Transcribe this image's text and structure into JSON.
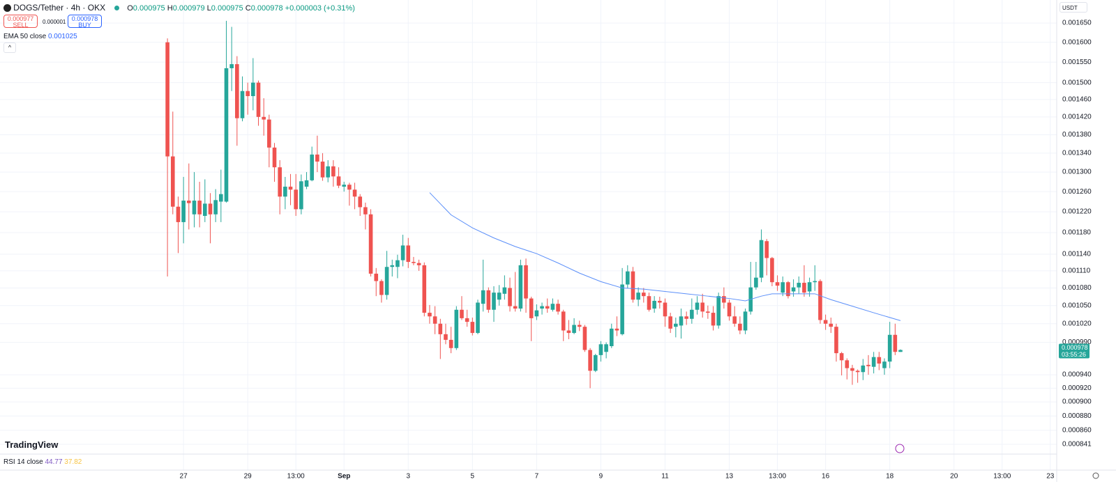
{
  "ui": {
    "symbol": "DOGS/Tether · 4h · OKX",
    "o": "O",
    "h": "H",
    "l": "L",
    "c": "C",
    "change": "+0.000003 (+0.31%)",
    "sell_price": "0.000977",
    "sell": "SELL",
    "spread": "0.000001",
    "buy_price": "0.000978",
    "buy": "BUY",
    "brand": "TradingView",
    "rsi_label": "RSI 14 close",
    "rsi_value": "44.77",
    "rsi_ma": "37.82",
    "countdown": "03:55:26",
    "currency": "USDT"
  },
  "chart_data": {
    "type": "candlestick",
    "log_scale": true,
    "grid": true,
    "up_color": "#26a69a",
    "down_color": "#ef5350",
    "xlim": [
      -31.3,
      166.2
    ],
    "xticks": [
      {
        "value": 3,
        "label": "27"
      },
      {
        "value": 15,
        "label": "29"
      },
      {
        "value": 24,
        "label": "13:00"
      },
      {
        "value": 33,
        "label": "Sep"
      },
      {
        "value": 45,
        "label": "3"
      },
      {
        "value": 57,
        "label": "5"
      },
      {
        "value": 69,
        "label": "7"
      },
      {
        "value": 81,
        "label": "9"
      },
      {
        "value": 93,
        "label": "11"
      },
      {
        "value": 105,
        "label": "13"
      },
      {
        "value": 114,
        "label": "13:00"
      },
      {
        "value": 123,
        "label": "16"
      },
      {
        "value": 135,
        "label": "18"
      },
      {
        "value": 147,
        "label": "20"
      },
      {
        "value": 156,
        "label": "13:00"
      },
      {
        "value": 165,
        "label": "23"
      }
    ],
    "ylim": [
      0.000807,
      0.001712
    ],
    "yticks": [
      {
        "value": 0.00165,
        "label": "0.001650"
      },
      {
        "value": 0.0016,
        "label": "0.001600"
      },
      {
        "value": 0.00155,
        "label": "0.001550"
      },
      {
        "value": 0.0015,
        "label": "0.001500"
      },
      {
        "value": 0.00146,
        "label": "0.001460"
      },
      {
        "value": 0.00142,
        "label": "0.001420"
      },
      {
        "value": 0.00138,
        "label": "0.001380"
      },
      {
        "value": 0.00134,
        "label": "0.001340"
      },
      {
        "value": 0.0013,
        "label": "0.001300"
      },
      {
        "value": 0.00126,
        "label": "0.001260"
      },
      {
        "value": 0.00122,
        "label": "0.001220"
      },
      {
        "value": 0.00118,
        "label": "0.001180"
      },
      {
        "value": 0.00114,
        "label": "0.001140"
      },
      {
        "value": 0.00111,
        "label": "0.001110"
      },
      {
        "value": 0.00108,
        "label": "0.001080"
      },
      {
        "value": 0.00105,
        "label": "0.001050"
      },
      {
        "value": 0.00102,
        "label": "0.001020"
      },
      {
        "value": 0.00099,
        "label": "0.000990"
      },
      {
        "value": 0.00094,
        "label": "0.000940"
      },
      {
        "value": 0.00092,
        "label": "0.000920"
      },
      {
        "value": 0.0009,
        "label": "0.000900"
      },
      {
        "value": 0.00088,
        "label": "0.000880"
      },
      {
        "value": 0.00086,
        "label": "0.000860"
      },
      0.000841
    ],
    "open": [
      0.0016,
      0.001333,
      0.00123,
      0.0012,
      0.001242,
      0.001215,
      0.001242,
      0.001212,
      0.001236,
      0.001215,
      0.00124,
      0.00124,
      0.001535,
      0.001545,
      0.001417,
      0.00148,
      0.001468,
      0.0015,
      0.00142,
      0.001414,
      0.001352,
      0.00131,
      0.00125,
      0.00127,
      0.001264,
      0.001225,
      0.00127,
      0.001283,
      0.001337,
      0.001322,
      0.001289,
      0.001312,
      0.001291,
      0.00127,
      0.001274,
      0.001264,
      0.00125,
      0.001229,
      0.001215,
      0.001105,
      0.001092,
      0.001068,
      0.001117,
      0.001117,
      0.001129,
      0.001156,
      0.001126,
      0.001124,
      0.00112,
      0.001038,
      0.001032,
      0.00102,
      0.001003,
      0.000994,
      0.000981,
      0.001043,
      0.001029,
      0.001023,
      0.001005,
      0.001053,
      0.001076,
      0.001043,
      0.00106,
      0.00107,
      0.00108,
      0.001049,
      0.001045,
      0.00112,
      0.001062,
      0.001032,
      0.001045,
      0.001049,
      0.001043,
      0.001053,
      0.00104,
      0.001009,
      0.001005,
      0.001018,
      0.001015,
      0.000978,
      0.000946,
      0.00097,
      0.000975,
      0.000984,
      0.001012,
      0.001003,
      0.001086,
      0.001109,
      0.00106,
      0.001072,
      0.001066,
      0.001045,
      0.001058,
      0.001055,
      0.001032,
      0.001015,
      0.001017,
      0.001032,
      0.001028,
      0.001043,
      0.001055,
      0.00104,
      0.001038,
      0.001017,
      0.001066,
      0.001055,
      0.001032,
      0.00102,
      0.001009,
      0.00104,
      0.001081,
      0.001098,
      0.001164,
      0.001133,
      0.00109,
      0.001072,
      0.00109,
      0.001074,
      0.001081,
      0.001089,
      0.001074,
      0.00109,
      0.001092,
      0.001026,
      0.00102,
      0.001015,
      0.000973,
      0.000962,
      0.00095,
      0.000946,
      0.000944,
      0.000955,
      0.000952,
      0.000967,
      0.00095,
      0.00096,
      0.001002,
      0.000975
    ],
    "high": [
      0.00161,
      0.001432,
      0.00125,
      0.00129,
      0.001318,
      0.0013,
      0.00128,
      0.001285,
      0.001257,
      0.001265,
      0.001305,
      0.001656,
      0.00164,
      0.001565,
      0.001515,
      0.0015,
      0.00156,
      0.001505,
      0.001463,
      0.001425,
      0.001362,
      0.001325,
      0.00129,
      0.001296,
      0.001296,
      0.001295,
      0.0013,
      0.001354,
      0.001378,
      0.00134,
      0.001325,
      0.001325,
      0.00131,
      0.00128,
      0.001278,
      0.001278,
      0.001255,
      0.001238,
      0.001225,
      0.001115,
      0.001095,
      0.001146,
      0.00113,
      0.001139,
      0.001176,
      0.00117,
      0.001135,
      0.00113,
      0.001125,
      0.001051,
      0.001049,
      0.001028,
      0.00102,
      0.001015,
      0.001049,
      0.001066,
      0.001043,
      0.00103,
      0.00106,
      0.00113,
      0.001081,
      0.001083,
      0.001085,
      0.001102,
      0.001098,
      0.001108,
      0.00113,
      0.001132,
      0.001065,
      0.001052,
      0.001055,
      0.001062,
      0.001062,
      0.00106,
      0.001043,
      0.001026,
      0.001029,
      0.001025,
      0.001018,
      0.000981,
      0.000972,
      0.000992,
      0.00099,
      0.00102,
      0.001032,
      0.001115,
      0.00112,
      0.001117,
      0.001081,
      0.00108,
      0.001072,
      0.001066,
      0.001065,
      0.001062,
      0.001038,
      0.00103,
      0.001045,
      0.00104,
      0.001062,
      0.001066,
      0.00107,
      0.00105,
      0.001049,
      0.001072,
      0.001081,
      0.00106,
      0.001049,
      0.001032,
      0.001045,
      0.001126,
      0.001126,
      0.001186,
      0.001168,
      0.001135,
      0.001102,
      0.0011,
      0.001092,
      0.001095,
      0.0011,
      0.00112,
      0.001098,
      0.00112,
      0.001095,
      0.001035,
      0.00103,
      0.00102,
      0.000975,
      0.000965,
      0.000955,
      0.000948,
      0.000964,
      0.00097,
      0.000975,
      0.000975,
      0.000965,
      0.001023,
      0.00102,
      0.000979
    ],
    "low": [
      0.0011,
      0.001215,
      0.001142,
      0.00116,
      0.001186,
      0.00119,
      0.00119,
      0.0012,
      0.00116,
      0.0012,
      0.0012,
      0.001238,
      0.00148,
      0.001356,
      0.00141,
      0.001425,
      0.001435,
      0.0014,
      0.001378,
      0.00131,
      0.00128,
      0.001215,
      0.001225,
      0.001233,
      0.001212,
      0.001215,
      0.001265,
      0.001281,
      0.0013,
      0.001282,
      0.001279,
      0.00127,
      0.001267,
      0.00126,
      0.001232,
      0.001225,
      0.001212,
      0.001186,
      0.0011,
      0.001066,
      0.001055,
      0.00106,
      0.0011,
      0.001097,
      0.001118,
      0.001115,
      0.00112,
      0.00111,
      0.001032,
      0.00102,
      0.001003,
      0.000964,
      0.000987,
      0.000973,
      0.000978,
      0.001026,
      0.001015,
      0.001001,
      0.001003,
      0.00104,
      0.001038,
      0.001023,
      0.00105,
      0.00106,
      0.00104,
      0.00104,
      0.00104,
      0.001038,
      0.000992,
      0.001026,
      0.001035,
      0.001038,
      0.00104,
      0.001035,
      0.000992,
      0.000995,
      0.001003,
      0.001008,
      0.000975,
      0.00092,
      0.000944,
      0.00096,
      0.000965,
      0.000981,
      0.001,
      0.001001,
      0.00108,
      0.001055,
      0.001049,
      0.001055,
      0.00104,
      0.001038,
      0.001045,
      0.001015,
      0.001005,
      0.000998,
      0.000996,
      0.001018,
      0.00102,
      0.001035,
      0.00103,
      0.001028,
      0.001009,
      0.001012,
      0.001045,
      0.001025,
      0.001015,
      0.001003,
      0.001003,
      0.001035,
      0.001077,
      0.00109,
      0.001102,
      0.001083,
      0.001075,
      0.001066,
      0.001062,
      0.001065,
      0.00107,
      0.001065,
      0.001065,
      0.001075,
      0.00102,
      0.00101,
      0.001005,
      0.00096,
      0.000939,
      0.000933,
      0.000925,
      0.000928,
      0.000932,
      0.00094,
      0.000942,
      0.000947,
      0.00094,
      0.00095,
      0.00097,
      0.000975
    ],
    "close": [
      0.001333,
      0.00123,
      0.0012,
      0.001242,
      0.001237,
      0.001242,
      0.001215,
      0.001236,
      0.001215,
      0.001243,
      0.001255,
      0.001535,
      0.001545,
      0.001417,
      0.00148,
      0.001468,
      0.0015,
      0.00142,
      0.001414,
      0.001352,
      0.00131,
      0.00125,
      0.00127,
      0.001264,
      0.001225,
      0.001281,
      0.001283,
      0.001337,
      0.001322,
      0.001289,
      0.001312,
      0.001291,
      0.001272,
      0.001274,
      0.001264,
      0.00125,
      0.001229,
      0.001215,
      0.001105,
      0.001092,
      0.001068,
      0.001117,
      0.00112,
      0.001129,
      0.001156,
      0.001126,
      0.001124,
      0.00112,
      0.001038,
      0.001032,
      0.00102,
      0.001003,
      0.000994,
      0.000981,
      0.001043,
      0.001029,
      0.001023,
      0.001005,
      0.001055,
      0.001076,
      0.001043,
      0.001072,
      0.001072,
      0.001081,
      0.001049,
      0.001045,
      0.00112,
      0.001062,
      0.001029,
      0.001042,
      0.001049,
      0.001045,
      0.001053,
      0.00104,
      0.001009,
      0.001005,
      0.001018,
      0.001015,
      0.000978,
      0.000946,
      0.00097,
      0.000987,
      0.000987,
      0.001012,
      0.001009,
      0.001086,
      0.001109,
      0.00106,
      0.001072,
      0.001066,
      0.001043,
      0.001058,
      0.001055,
      0.001032,
      0.001012,
      0.00102,
      0.001032,
      0.001028,
      0.001043,
      0.001055,
      0.00104,
      0.001038,
      0.001017,
      0.001066,
      0.001055,
      0.001032,
      0.00102,
      0.001009,
      0.00104,
      0.001081,
      0.001098,
      0.001166,
      0.001133,
      0.00109,
      0.001084,
      0.00109,
      0.001066,
      0.001081,
      0.001089,
      0.001072,
      0.00109,
      0.001092,
      0.001026,
      0.00102,
      0.001015,
      0.000973,
      0.000962,
      0.00095,
      0.000946,
      0.000944,
      0.000954,
      0.000953,
      0.000967,
      0.000957,
      0.00096,
      0.001002,
      0.000975,
      0.000978
    ],
    "ema": {
      "name": "EMA 50 close",
      "color": "#5b8ff9",
      "x": [
        49,
        53,
        57,
        61,
        65,
        69,
        73,
        77,
        81,
        85,
        89,
        93,
        97,
        101,
        105,
        108,
        111,
        113,
        117,
        121,
        124,
        128,
        132,
        137
      ],
      "values": [
        0.001258,
        0.001214,
        0.001189,
        0.00117,
        0.001154,
        0.001141,
        0.001124,
        0.001106,
        0.001091,
        0.00108,
        0.001078,
        0.001074,
        0.00107,
        0.001066,
        0.001062,
        0.001058,
        0.001066,
        0.00107,
        0.00107,
        0.00107,
        0.00106,
        0.001049,
        0.001038,
        0.001025
      ]
    }
  }
}
